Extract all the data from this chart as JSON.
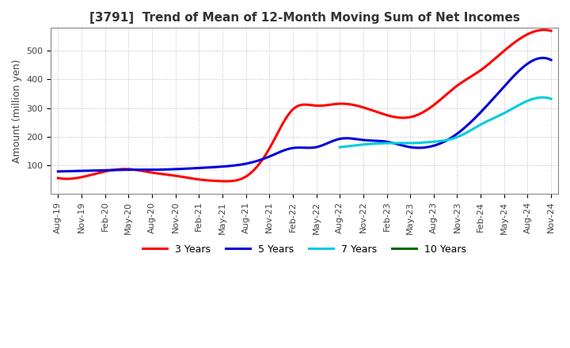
{
  "title": "[3791]  Trend of Mean of 12-Month Moving Sum of Net Incomes",
  "ylabel": "Amount (million yen)",
  "background_color": "#ffffff",
  "grid_color": "#bbbbbb",
  "ylim": [
    0,
    580
  ],
  "yticks": [
    100,
    200,
    300,
    400,
    500
  ],
  "x_labels": [
    "Aug-19",
    "Nov-19",
    "Feb-20",
    "May-20",
    "Aug-20",
    "Nov-20",
    "Feb-21",
    "May-21",
    "Aug-21",
    "Nov-21",
    "Feb-22",
    "May-22",
    "Aug-22",
    "Nov-22",
    "Feb-23",
    "May-23",
    "Aug-23",
    "Nov-23",
    "Feb-24",
    "May-24",
    "Aug-24",
    "Nov-24"
  ],
  "series": {
    "3 Years": {
      "color": "#ff0000",
      "values": [
        55,
        58,
        78,
        86,
        74,
        63,
        50,
        44,
        60,
        158,
        295,
        308,
        315,
        302,
        275,
        268,
        310,
        378,
        432,
        500,
        558,
        570
      ]
    },
    "5 Years": {
      "color": "#0000dd",
      "values": [
        78,
        80,
        82,
        84,
        84,
        86,
        90,
        95,
        105,
        130,
        160,
        163,
        192,
        188,
        182,
        163,
        168,
        210,
        285,
        375,
        455,
        468
      ]
    },
    "7 Years": {
      "color": "#00ccdd",
      "values": [
        null,
        null,
        null,
        null,
        null,
        null,
        null,
        null,
        null,
        null,
        null,
        null,
        163,
        172,
        177,
        177,
        182,
        198,
        242,
        282,
        325,
        332
      ]
    },
    "10 Years": {
      "color": "#006600",
      "values": [
        null,
        null,
        null,
        null,
        null,
        null,
        null,
        null,
        null,
        null,
        null,
        null,
        null,
        null,
        null,
        null,
        null,
        null,
        null,
        null,
        null,
        null
      ]
    }
  },
  "legend_entries": [
    "3 Years",
    "5 Years",
    "7 Years",
    "10 Years"
  ],
  "legend_colors": [
    "#ff0000",
    "#0000dd",
    "#00ccdd",
    "#006600"
  ],
  "title_fontsize": 11,
  "tick_fontsize": 8,
  "ylabel_fontsize": 9
}
